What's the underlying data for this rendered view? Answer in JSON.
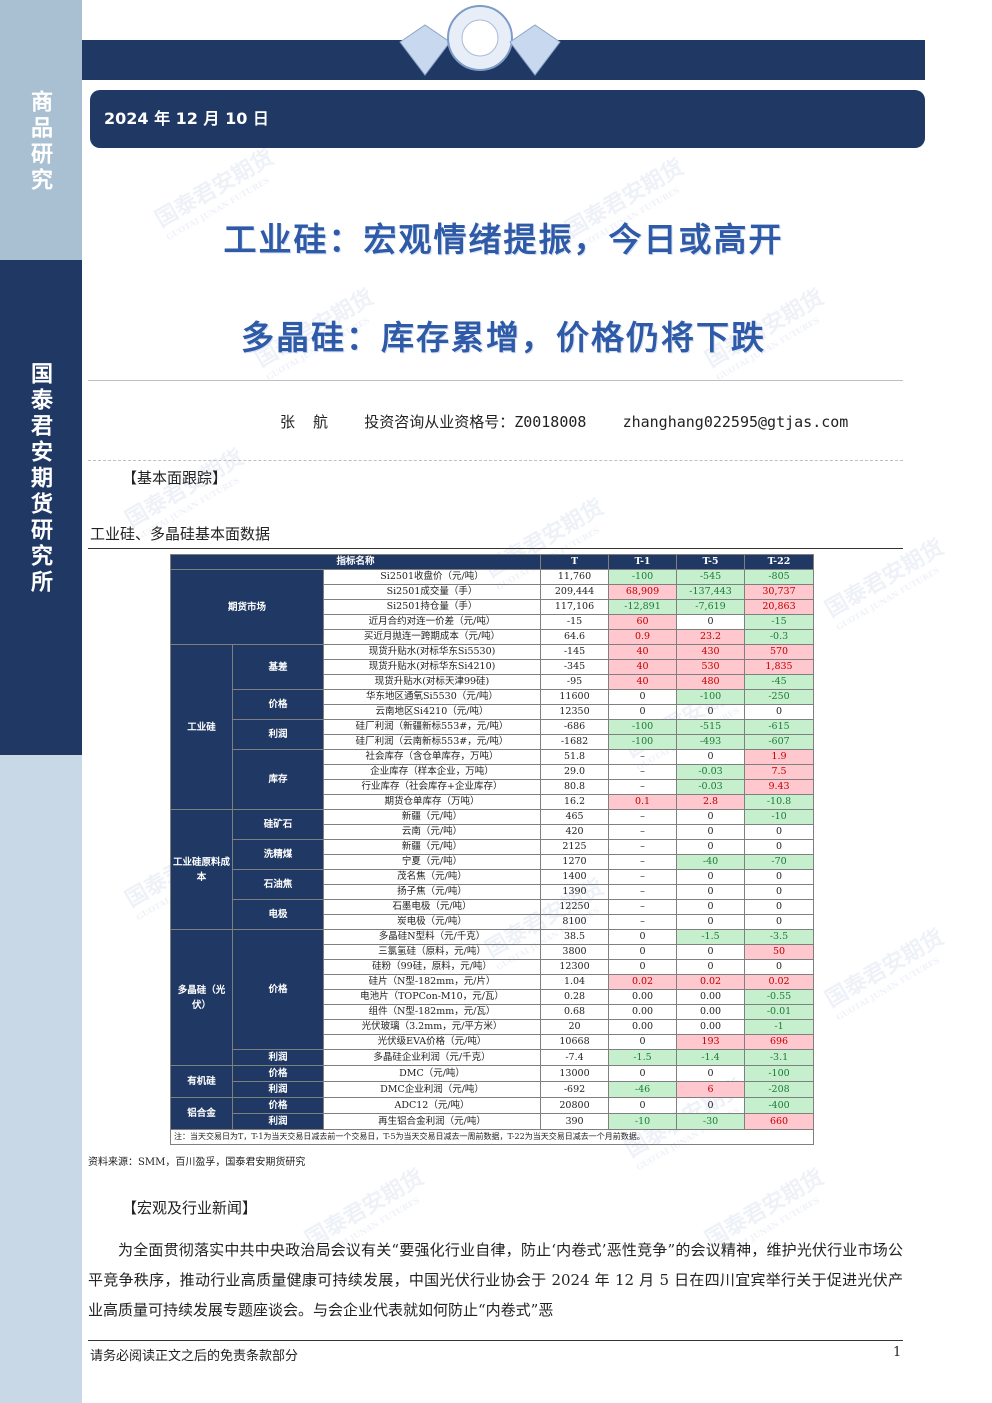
{
  "sidebar": {
    "top": "商品研究",
    "bottom": "国泰君安期货研究所"
  },
  "header": {
    "date": "2024 年 12 月 10 日"
  },
  "titles": [
    "工业硅：宏观情绪提振，今日或高开",
    "多晶硅：库存累增，价格仍将下跌"
  ],
  "author": {
    "name": "张  航",
    "license": "投资咨询从业资格号：Z0018008",
    "email": "zhanghang022595@gtjas.com"
  },
  "watermark": {
    "cn": "国泰君安期货",
    "en": "GUOTAI JUNAN FUTURES"
  },
  "section1": "【基本面跟踪】",
  "table_caption": "工业硅、多晶硅基本面数据",
  "table": {
    "header": [
      "指标名称",
      "T",
      "T-1",
      "T-5",
      "T-22"
    ],
    "groups": [
      {
        "name": "期货市场",
        "rows": [
          [
            "Si2501收盘价（元/吨）",
            "11,760",
            "-100",
            "-545",
            "-805"
          ],
          [
            "Si2501成交量（手）",
            "209,444",
            "68,909",
            "-137,443",
            "30,737"
          ],
          [
            "Si2501持仓量（手）",
            "117,106",
            "-12,891",
            "-7,619",
            "20,863"
          ],
          [
            "近月合约对连一价差（元/吨）",
            "-15",
            "60",
            "0",
            "-15"
          ],
          [
            "买近月抛连一跨期成本（元/吨）",
            "64.6",
            "0.9",
            "23.2",
            "-0.3"
          ]
        ]
      },
      {
        "name": "工业硅",
        "subs": [
          {
            "name": "基差",
            "rows": [
              [
                "现货升贴水(对标华东Si5530)",
                "-145",
                "40",
                "430",
                "570"
              ],
              [
                "现货升贴水(对标华东Si4210)",
                "-345",
                "40",
                "530",
                "1,835"
              ],
              [
                "现货升贴水(对标天津99硅)",
                "-95",
                "40",
                "480",
                "-45"
              ]
            ]
          },
          {
            "name": "价格",
            "rows": [
              [
                "华东地区通氧Si5530（元/吨）",
                "11600",
                "0",
                "-100",
                "-250"
              ],
              [
                "云南地区Si4210（元/吨）",
                "12350",
                "0",
                "0",
                "0"
              ]
            ]
          },
          {
            "name": "利润",
            "rows": [
              [
                "硅厂利润（新疆新标553#，元/吨）",
                "-686",
                "-100",
                "-515",
                "-615"
              ],
              [
                "硅厂利润（云南新标553#，元/吨）",
                "-1682",
                "-100",
                "-493",
                "-607"
              ]
            ]
          },
          {
            "name": "库存",
            "rows": [
              [
                "社会库存（含仓单库存，万吨）",
                "51.8",
                "–",
                "0",
                "1.9"
              ],
              [
                "企业库存（样本企业，万吨）",
                "29.0",
                "–",
                "-0.03",
                "7.5"
              ],
              [
                "行业库存（社会库存+企业库存）",
                "80.8",
                "–",
                "-0.03",
                "9.43"
              ],
              [
                "期货仓单库存（万吨）",
                "16.2",
                "0.1",
                "2.8",
                "-10.8"
              ]
            ]
          }
        ]
      },
      {
        "name": "工业硅原料成本",
        "subs": [
          {
            "name": "硅矿石",
            "rows": [
              [
                "新疆（元/吨）",
                "465",
                "–",
                "0",
                "-10"
              ],
              [
                "云南（元/吨）",
                "420",
                "–",
                "0",
                "0"
              ]
            ]
          },
          {
            "name": "洗精煤",
            "rows": [
              [
                "新疆（元/吨）",
                "2125",
                "–",
                "0",
                "0"
              ],
              [
                "宁夏（元/吨）",
                "1270",
                "–",
                "-40",
                "-70"
              ]
            ]
          },
          {
            "name": "石油焦",
            "rows": [
              [
                "茂名焦（元/吨）",
                "1400",
                "–",
                "0",
                "0"
              ],
              [
                "扬子焦（元/吨）",
                "1390",
                "–",
                "0",
                "0"
              ]
            ]
          },
          {
            "name": "电极",
            "rows": [
              [
                "石墨电极（元/吨）",
                "12250",
                "–",
                "0",
                "0"
              ],
              [
                "炭电极（元/吨）",
                "8100",
                "–",
                "0",
                "0"
              ]
            ]
          }
        ]
      },
      {
        "name": "多晶硅（光伏）",
        "subs": [
          {
            "name": "价格",
            "rows": [
              [
                "多晶硅N型料（元/千克）",
                "38.5",
                "0",
                "-1.5",
                "-3.5"
              ],
              [
                "三氯氢硅（原料，元/吨）",
                "3800",
                "0",
                "0",
                "50"
              ],
              [
                "硅粉（99硅，原料，元/吨）",
                "12300",
                "0",
                "0",
                "0"
              ],
              [
                "硅片（N型-182mm，元/片）",
                "1.04",
                "0.02",
                "0.02",
                "0.02"
              ],
              [
                "电池片（TOPCon-M10，元/瓦）",
                "0.28",
                "0.00",
                "0.00",
                "-0.55"
              ],
              [
                "组件（N型-182mm，元/瓦）",
                "0.68",
                "0.00",
                "0.00",
                "-0.01"
              ],
              [
                "光伏玻璃（3.2mm，元/平方米）",
                "20",
                "0.00",
                "0.00",
                "-1"
              ],
              [
                "光伏级EVA价格（元/吨）",
                "10668",
                "0",
                "193",
                "696"
              ]
            ]
          },
          {
            "name": "利润",
            "rows": [
              [
                "多晶硅企业利润（元/千克）",
                "-7.4",
                "-1.5",
                "-1.4",
                "-3.1"
              ]
            ]
          }
        ]
      },
      {
        "name": "有机硅",
        "subs": [
          {
            "name": "价格",
            "rows": [
              [
                "DMC（元/吨）",
                "13000",
                "0",
                "0",
                "-100"
              ]
            ]
          },
          {
            "name": "利润",
            "rows": [
              [
                "DMC企业利润（元/吨）",
                "-692",
                "-46",
                "6",
                "-208"
              ]
            ]
          }
        ]
      },
      {
        "name": "铝合金",
        "subs": [
          {
            "name": "价格",
            "rows": [
              [
                "ADC12（元/吨）",
                "20800",
                "0",
                "0",
                "-400"
              ]
            ]
          },
          {
            "name": "利润",
            "rows": [
              [
                "再生铝合金利润（元/吨）",
                "390",
                "-10",
                "-30",
                "660"
              ]
            ]
          }
        ]
      }
    ],
    "note": "注：当天交易日为T，T-1为当天交易日减去前一个交易日，T-5为当天交易日减去一周前数据，T-22为当天交易日减去一个月前数据。"
  },
  "source": "资料来源：SMM，百川盈孚，国泰君安期货研究",
  "section2": "【宏观及行业新闻】",
  "paragraph": "为全面贯彻落实中共中央政治局会议有关“要强化行业自律，防止‘内卷式’恶性竞争”的会议精神，维护光伏行业市场公平竞争秩序，推动行业高质量健康可持续发展，中国光伏行业协会于 2024 年 12 月 5 日在四川宜宾举行关于促进光伏产业高质量可持续发展专题座谈会。与会企业代表就如何防止“内卷式”恶",
  "footer": {
    "disclaimer": "请务必阅读正文之后的免责条款部分",
    "page": "1"
  }
}
